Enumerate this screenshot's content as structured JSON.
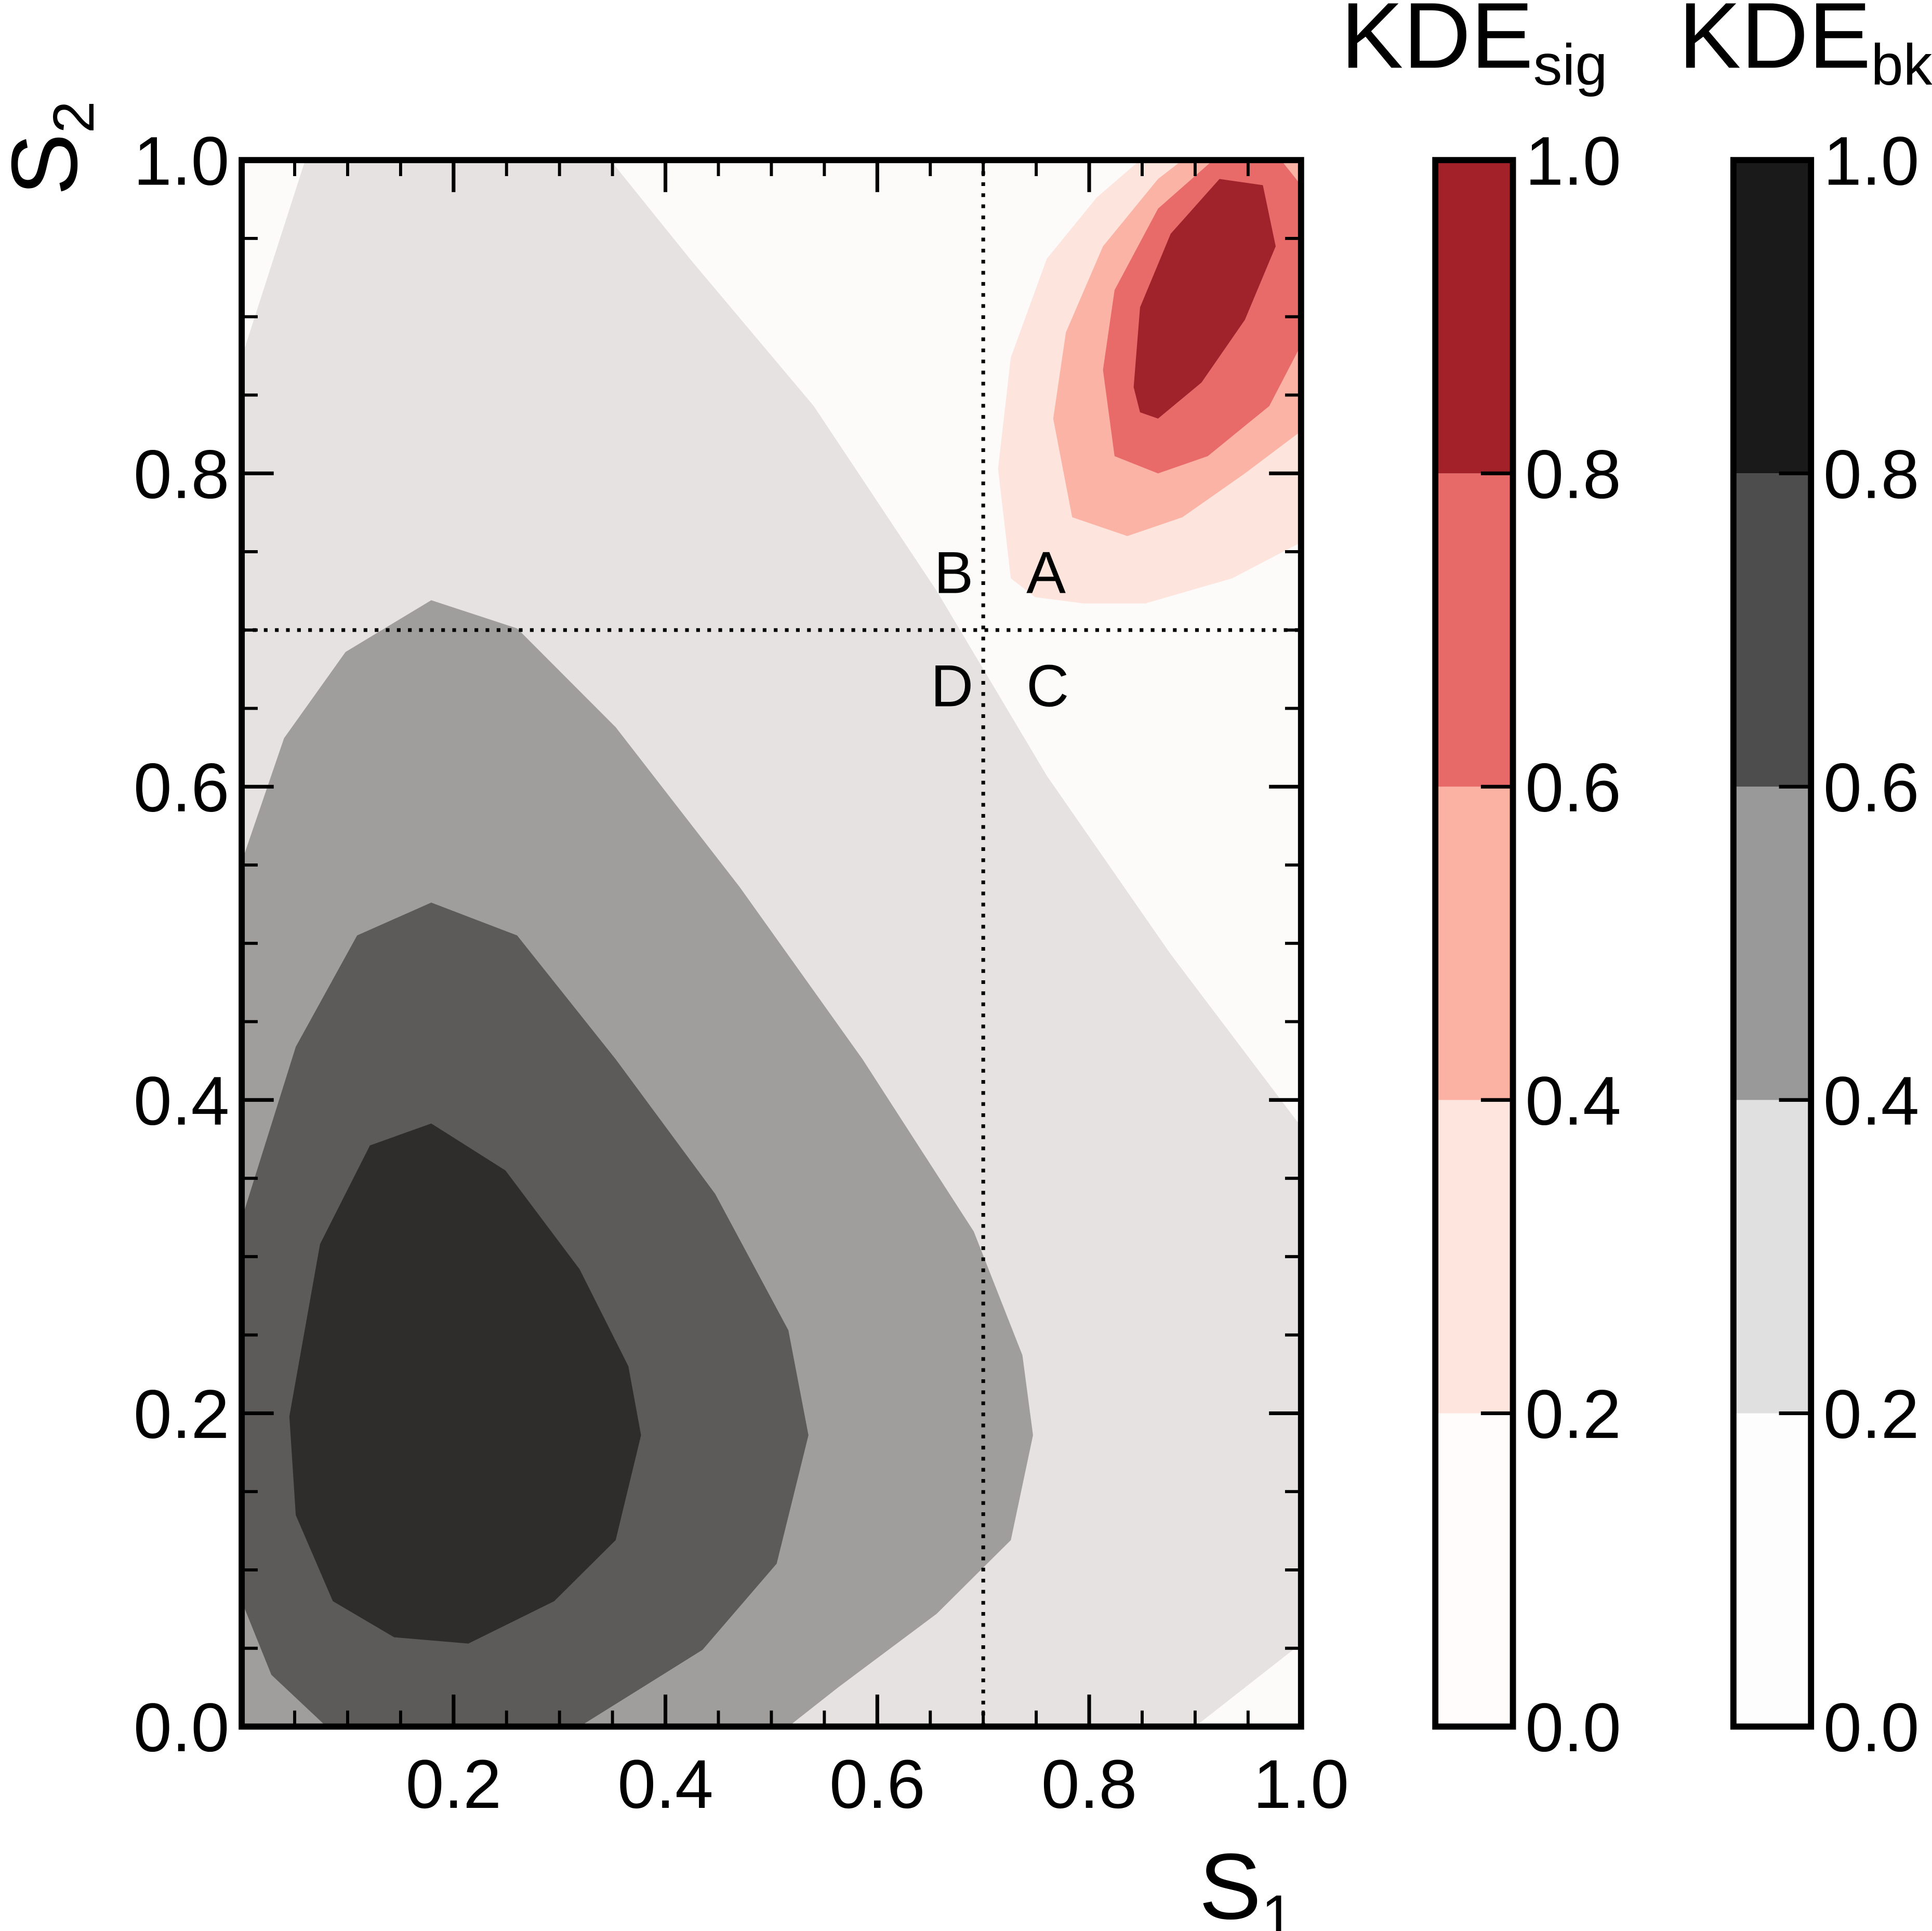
{
  "chart_data": {
    "type": "contour",
    "xlabel": {
      "main": "S",
      "sub": "1"
    },
    "ylabel": {
      "main": "S",
      "sub": "2"
    },
    "xlim": [
      0,
      1
    ],
    "ylim": [
      0,
      1
    ],
    "xticks": [
      0.2,
      0.4,
      0.6,
      0.8,
      {
        "value": 1,
        "label": "1.0"
      }
    ],
    "yticks": [
      {
        "value": 0,
        "label": "0.0"
      },
      0.2,
      0.4,
      0.6,
      0.8,
      {
        "value": 1,
        "label": "1.0"
      }
    ],
    "minor_tick_step": 0.05,
    "background": "#fcfbfa",
    "cuts": {
      "x": 0.7,
      "y": 0.7
    },
    "region_labels": [
      "A",
      "B",
      "C",
      "D"
    ],
    "contours": [
      {
        "color": "#e5e2e1",
        "x": [
          0,
          0.06,
          0.348,
          0.423,
          0.54,
          0.656,
          0.76,
          0.877,
          1,
          1,
          0.9,
          0
        ],
        "y": [
          0.874,
          1,
          1,
          0.937,
          0.843,
          0.725,
          0.607,
          0.493,
          0.383,
          0.053,
          0,
          0
        ]
      },
      {
        "color": "#9f9e9c",
        "x": [
          0,
          0.04,
          0.098,
          0.179,
          0.26,
          0.353,
          0.47,
          0.586,
          0.691,
          0.737,
          0.747,
          0.726,
          0.656,
          0.563,
          0.516,
          0
        ],
        "y": [
          0.552,
          0.631,
          0.686,
          0.719,
          0.701,
          0.638,
          0.536,
          0.426,
          0.316,
          0.237,
          0.186,
          0.119,
          0.072,
          0.025,
          0,
          0
        ]
      },
      {
        "color": "#5c5b59",
        "x": [
          0,
          0.051,
          0.109,
          0.179,
          0.26,
          0.353,
          0.447,
          0.516,
          0.535,
          0.505,
          0.435,
          0.319,
          0.08,
          0.028,
          0
        ],
        "y": [
          0.324,
          0.434,
          0.505,
          0.526,
          0.505,
          0.426,
          0.34,
          0.253,
          0.186,
          0.104,
          0.049,
          0,
          0,
          0.033,
          0.08
        ]
      },
      {
        "color": "#2e2d2b",
        "x": [
          0.045,
          0.074,
          0.121,
          0.179,
          0.249,
          0.319,
          0.365,
          0.377,
          0.353,
          0.295,
          0.214,
          0.144,
          0.086,
          0.051
        ],
        "y": [
          0.198,
          0.308,
          0.371,
          0.385,
          0.355,
          0.292,
          0.23,
          0.186,
          0.119,
          0.08,
          0.053,
          0.057,
          0.08,
          0.135
        ]
      },
      {
        "color": "#fde4dd",
        "x": [
          0.726,
          0.714,
          0.726,
          0.76,
          0.807,
          0.848,
          1,
          1,
          0.935,
          0.853,
          0.795,
          0.749
        ],
        "y": [
          0.733,
          0.803,
          0.874,
          0.937,
          0.976,
          1,
          1,
          0.756,
          0.733,
          0.717,
          0.717,
          0.721
        ]
      },
      {
        "color": "#fbb3a5",
        "x": [
          0.766,
          0.778,
          0.813,
          0.865,
          0.888,
          1,
          1,
          0.947,
          0.888,
          0.836,
          0.784
        ],
        "y": [
          0.835,
          0.89,
          0.945,
          0.988,
          1,
          1,
          0.827,
          0.8,
          0.772,
          0.76,
          0.772
        ]
      },
      {
        "color": "#e86a69",
        "x": [
          0.813,
          0.824,
          0.865,
          0.917,
          0.981,
          1,
          1,
          0.97,
          0.912,
          0.865,
          0.824
        ],
        "y": [
          0.866,
          0.917,
          0.969,
          1,
          1,
          0.984,
          0.882,
          0.843,
          0.811,
          0.8,
          0.811
        ]
      },
      {
        "color": "#a0222b",
        "x": [
          0.842,
          0.848,
          0.877,
          0.923,
          0.964,
          0.976,
          0.947,
          0.906,
          0.865,
          0.848
        ],
        "y": [
          0.855,
          0.906,
          0.953,
          0.988,
          0.984,
          0.945,
          0.898,
          0.858,
          0.835,
          0.839
        ]
      }
    ],
    "colorbars": [
      {
        "label": {
          "main": "KDE",
          "sub": "sig"
        },
        "levels": [
          0,
          0.2,
          0.4,
          0.6,
          0.8,
          1
        ],
        "colors": [
          "#fffcfb",
          "#fee5dd",
          "#fcb2a2",
          "#e86a68",
          "#a3222a"
        ],
        "ticks": [
          {
            "value": 0,
            "label": "0.0"
          },
          0.2,
          0.4,
          0.6,
          0.8,
          {
            "value": 1,
            "label": "1.0"
          }
        ]
      },
      {
        "label": {
          "main": "KDE",
          "sub": "bkg"
        },
        "levels": [
          0,
          0.2,
          0.4,
          0.6,
          0.8,
          1
        ],
        "colors": [
          "#fdfdfd",
          "#e0e0e0",
          "#999999",
          "#4d4d4d",
          "#1a1a1a"
        ],
        "ticks": [
          {
            "value": 0,
            "label": "0.0"
          },
          0.2,
          0.4,
          0.6,
          0.8,
          {
            "value": 1,
            "label": "1.0"
          }
        ]
      }
    ]
  }
}
